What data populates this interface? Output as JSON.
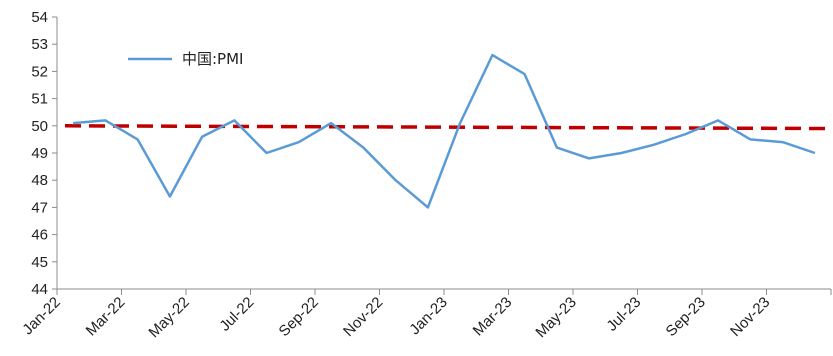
{
  "chart_data": {
    "type": "line",
    "x": [
      "Jan-22",
      "Feb-22",
      "Mar-22",
      "Apr-22",
      "May-22",
      "Jun-22",
      "Jul-22",
      "Aug-22",
      "Sep-22",
      "Oct-22",
      "Nov-22",
      "Dec-22",
      "Jan-23",
      "Feb-23",
      "Mar-23",
      "Apr-23",
      "May-23",
      "Jun-23",
      "Jul-23",
      "Aug-23",
      "Sep-23",
      "Oct-23",
      "Nov-23",
      "Dec-23"
    ],
    "x_tick_labels": [
      "Jan-22",
      "Mar-22",
      "May-22",
      "Jul-22",
      "Sep-22",
      "Nov-22",
      "Jan-23",
      "Mar-23",
      "May-23",
      "Jul-23",
      "Sep-23",
      "Nov-23"
    ],
    "series": [
      {
        "name": "中国:PMI",
        "color": "#5b9bd5",
        "values": [
          50.1,
          50.2,
          49.5,
          47.4,
          49.6,
          50.2,
          49.0,
          49.4,
          50.1,
          49.2,
          48.0,
          47.0,
          50.1,
          52.6,
          51.9,
          49.2,
          48.8,
          49.0,
          49.3,
          49.7,
          50.2,
          49.5,
          49.4,
          49.0
        ]
      }
    ],
    "reference_line": {
      "start": 50.0,
      "end": 49.9,
      "color": "#c00000",
      "style": "dashed"
    },
    "ylim": [
      44,
      54
    ],
    "y_ticks": [
      44,
      45,
      46,
      47,
      48,
      49,
      50,
      51,
      52,
      53,
      54
    ],
    "legend": {
      "label": "中国:PMI",
      "placement": "top-left"
    },
    "grid": false,
    "title": "",
    "xlabel": "",
    "ylabel": ""
  }
}
